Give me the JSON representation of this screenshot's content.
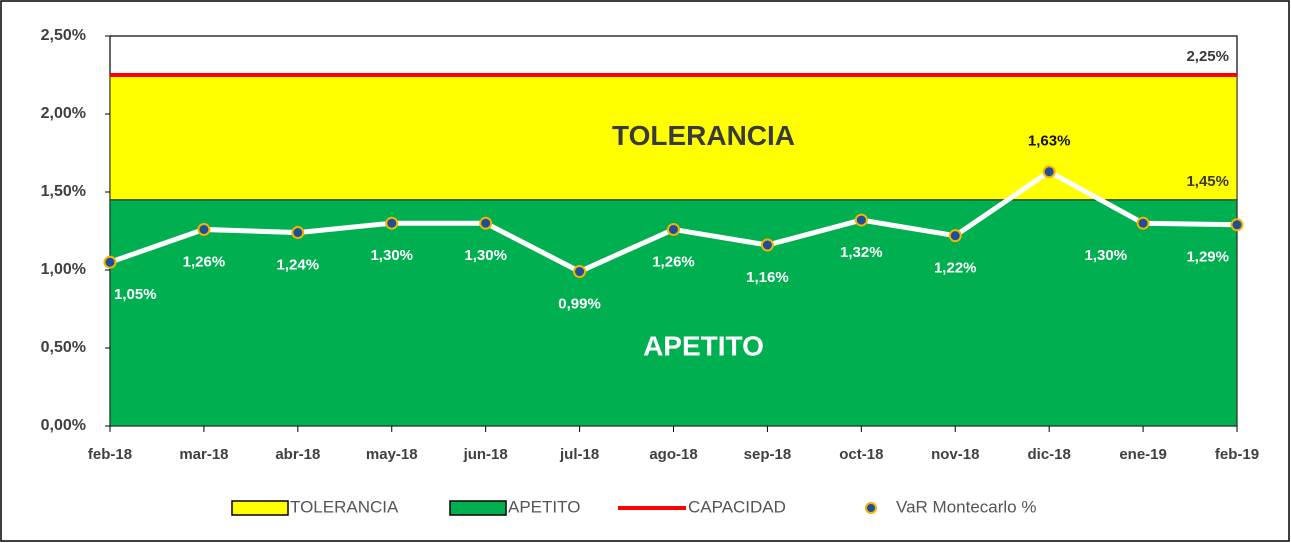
{
  "chart_data": {
    "type": "line",
    "categories": [
      "feb-18",
      "mar-18",
      "abr-18",
      "may-18",
      "jun-18",
      "jul-18",
      "ago-18",
      "sep-18",
      "oct-18",
      "nov-18",
      "dic-18",
      "ene-19",
      "feb-19"
    ],
    "ylim": [
      0,
      2.5
    ],
    "yticks": [
      {
        "value": 0,
        "label": "0,00%"
      },
      {
        "value": 0.5,
        "label": "0,50%"
      },
      {
        "value": 1,
        "label": "1,00%"
      },
      {
        "value": 1.5,
        "label": "1,50%"
      },
      {
        "value": 2,
        "label": "2,00%"
      },
      {
        "value": 2.5,
        "label": "2,50%"
      }
    ],
    "stacked_areas": true,
    "series": [
      {
        "name": "TOLERANCIA",
        "kind": "area",
        "color": "#ffff00",
        "values": [
          0.8,
          0.8,
          0.8,
          0.8,
          0.8,
          0.8,
          0.8,
          0.8,
          0.8,
          0.8,
          0.8,
          0.8,
          0.8
        ]
      },
      {
        "name": "APETITO",
        "kind": "area",
        "color": "#00b050",
        "values": [
          1.45,
          1.45,
          1.45,
          1.45,
          1.45,
          1.45,
          1.45,
          1.45,
          1.45,
          1.45,
          1.45,
          1.45,
          1.45
        ],
        "value_labels": [
          null,
          null,
          null,
          null,
          null,
          null,
          null,
          null,
          null,
          null,
          null,
          null,
          "1,45%"
        ]
      },
      {
        "name": "CAPACIDAD",
        "kind": "line",
        "color": "#ff0000",
        "values": [
          2.25,
          2.25,
          2.25,
          2.25,
          2.25,
          2.25,
          2.25,
          2.25,
          2.25,
          2.25,
          2.25,
          2.25,
          2.25
        ],
        "value_labels": [
          null,
          null,
          null,
          null,
          null,
          null,
          null,
          null,
          null,
          null,
          null,
          null,
          "2,25%"
        ]
      },
      {
        "name": "VaR Montecarlo %",
        "kind": "marker-line",
        "color": "#ffffff",
        "marker_color": "#1f4e9a",
        "marker_edge": "#f4b400",
        "values": [
          1.05,
          1.26,
          1.24,
          1.3,
          1.3,
          0.99,
          1.26,
          1.16,
          1.32,
          1.22,
          1.63,
          1.3,
          1.29
        ],
        "value_labels": [
          "1,05%",
          "1,26%",
          "1,24%",
          "1,30%",
          "1,30%",
          "0,99%",
          "1,26%",
          "1,16%",
          "1,32%",
          "1,22%",
          "1,63%",
          "1,30%",
          "1,29%"
        ]
      }
    ]
  }
}
